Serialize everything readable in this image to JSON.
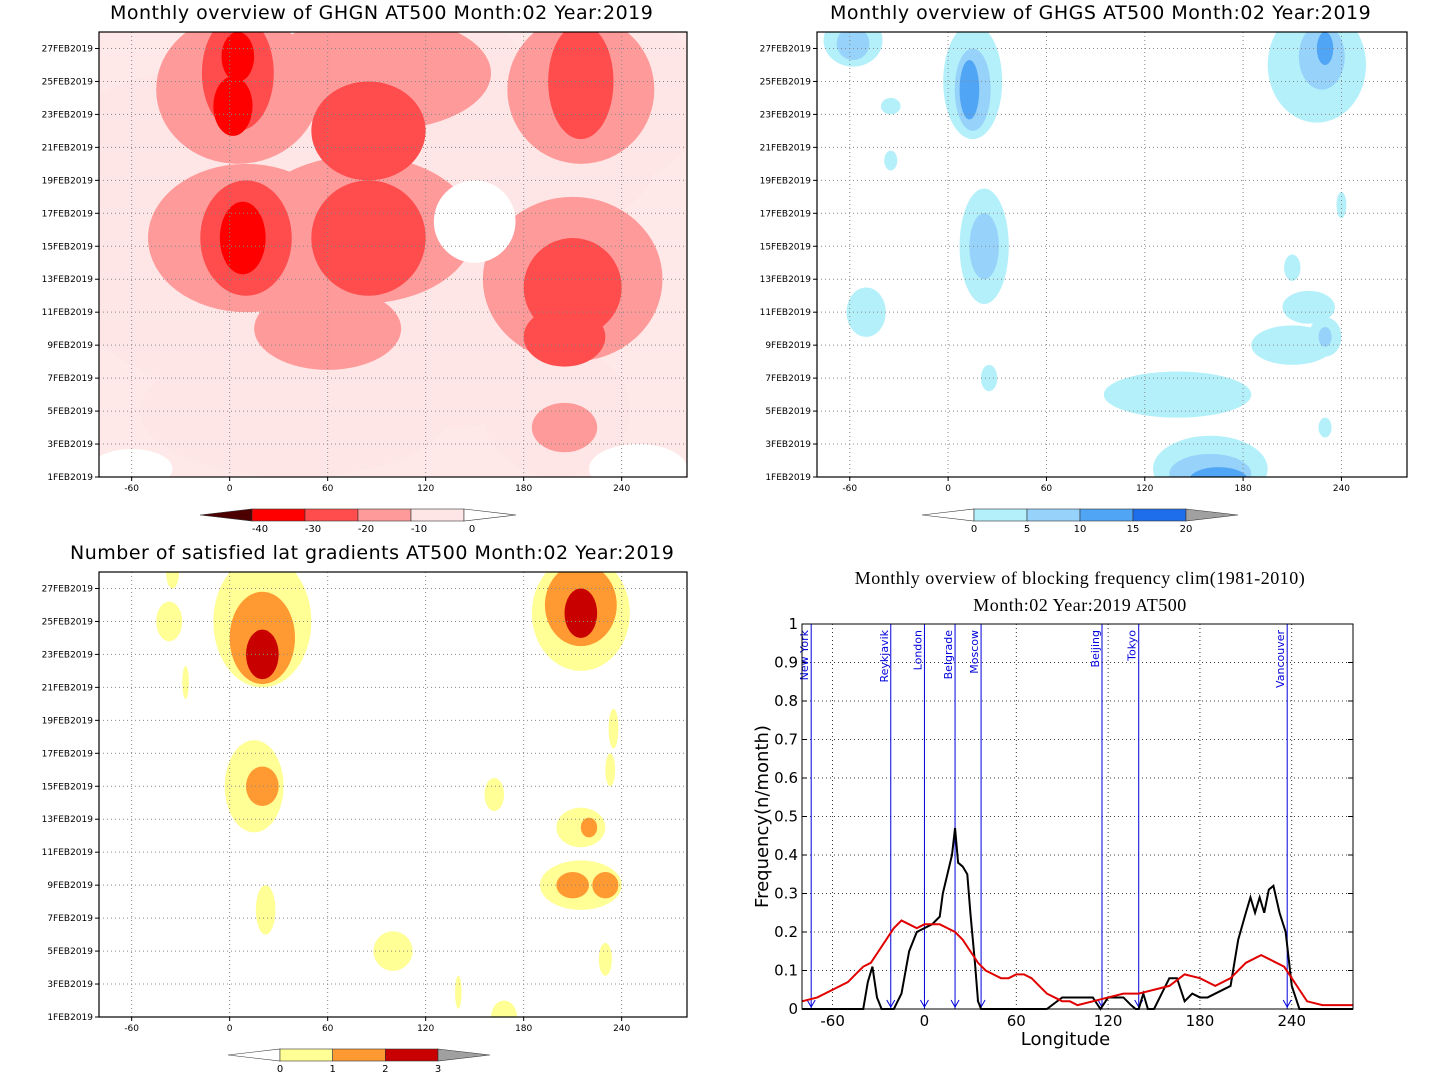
{
  "panels": {
    "ghgn": {
      "title": "Monthly overview of GHGN AT500 Month:02 Year:2019",
      "colorbar": {
        "labels": [
          "-40",
          "-30",
          "-20",
          "-10",
          "0"
        ],
        "colors": [
          "#4d0000",
          "#e80000",
          "#ff5050",
          "#ff9c9c",
          "#ffe8e8"
        ]
      }
    },
    "ghgs": {
      "title": "Monthly overview of GHGS AT500 Month:02 Year:2019",
      "colorbar": {
        "labels": [
          "0",
          "5",
          "10",
          "15",
          "20"
        ],
        "colors": [
          "#b4f0fa",
          "#96d2fa",
          "#50a5f5",
          "#1e6eeb",
          "#1450c8"
        ]
      }
    },
    "lat": {
      "title": "Number of satisfied lat gradients AT500 Month:02 Year:2019",
      "colorbar": {
        "labels": [
          "0",
          "1",
          "2",
          "3"
        ],
        "colors": [
          "#ffff96",
          "#ff9a32",
          "#c80000"
        ]
      }
    },
    "freq": {
      "title_line1": "Monthly overview of blocking frequency clim(1981-2010)",
      "title_line2": "Month:02 Year:2019  AT500"
    }
  },
  "map_axes": {
    "x_ticks": [
      "-60",
      "0",
      "60",
      "120",
      "180",
      "240"
    ],
    "y_ticks": [
      "1FEB2019",
      "3FEB2019",
      "5FEB2019",
      "7FEB2019",
      "9FEB2019",
      "11FEB2019",
      "13FEB2019",
      "15FEB2019",
      "17FEB2019",
      "19FEB2019",
      "21FEB2019",
      "23FEB2019",
      "25FEB2019",
      "27FEB2019"
    ]
  },
  "chart_data": [
    {
      "type": "heatmap",
      "title": "Monthly overview of GHGN AT500 Month:02 Year:2019",
      "xlim": [
        -80,
        280
      ],
      "x_ticks": [
        -60,
        0,
        60,
        120,
        180,
        240
      ],
      "y_ticks": [
        "1FEB2019",
        "3FEB2019",
        "5FEB2019",
        "7FEB2019",
        "9FEB2019",
        "11FEB2019",
        "13FEB2019",
        "15FEB2019",
        "17FEB2019",
        "19FEB2019",
        "21FEB2019",
        "23FEB2019",
        "25FEB2019",
        "27FEB2019"
      ],
      "levels": [
        -40,
        -30,
        -20,
        -10,
        0
      ],
      "blobs": [
        {
          "lon": 5,
          "day": 24.5,
          "rx": 50,
          "ry": 4.5,
          "v": -20
        },
        {
          "lon": 5,
          "day": 25.5,
          "rx": 22,
          "ry": 3.5,
          "v": -30
        },
        {
          "lon": 5,
          "day": 26.5,
          "rx": 10,
          "ry": 1.5,
          "v": -40
        },
        {
          "lon": 2,
          "day": 23.5,
          "rx": 12,
          "ry": 1.8,
          "v": -40
        },
        {
          "lon": 90,
          "day": 25.5,
          "rx": 70,
          "ry": 3.5,
          "v": -20
        },
        {
          "lon": 85,
          "day": 22,
          "rx": 35,
          "ry": 3,
          "v": -30
        },
        {
          "lon": 215,
          "day": 24.5,
          "rx": 45,
          "ry": 4.5,
          "v": -20
        },
        {
          "lon": 215,
          "day": 25,
          "rx": 20,
          "ry": 3.5,
          "v": -30
        },
        {
          "lon": 10,
          "day": 15.5,
          "rx": 60,
          "ry": 4.5,
          "v": -20
        },
        {
          "lon": 10,
          "day": 15.5,
          "rx": 28,
          "ry": 3.5,
          "v": -30
        },
        {
          "lon": 8,
          "day": 15.5,
          "rx": 14,
          "ry": 2.2,
          "v": -40
        },
        {
          "lon": 80,
          "day": 16,
          "rx": 70,
          "ry": 4.5,
          "v": -20
        },
        {
          "lon": 85,
          "day": 15.5,
          "rx": 35,
          "ry": 3.5,
          "v": -30
        },
        {
          "lon": 210,
          "day": 13,
          "rx": 55,
          "ry": 5,
          "v": -20
        },
        {
          "lon": 210,
          "day": 12.5,
          "rx": 30,
          "ry": 3,
          "v": -30
        },
        {
          "lon": 205,
          "day": 9.5,
          "rx": 25,
          "ry": 1.8,
          "v": -30
        },
        {
          "lon": 60,
          "day": 10,
          "rx": 45,
          "ry": 2.5,
          "v": -20
        },
        {
          "lon": 140,
          "day": 10,
          "rx": 60,
          "ry": 6,
          "v": -10
        },
        {
          "lon": 40,
          "day": 5,
          "rx": 95,
          "ry": 4,
          "v": -10
        },
        {
          "lon": 200,
          "day": 5,
          "rx": 45,
          "ry": 4,
          "v": -10
        },
        {
          "lon": 205,
          "day": 4,
          "rx": 20,
          "ry": 1.5,
          "v": -20
        },
        {
          "lon": 5,
          "day": 20,
          "rx": 120,
          "ry": 6,
          "v": -10
        },
        {
          "lon": 150,
          "day": 20,
          "rx": 110,
          "ry": 5,
          "v": -10
        },
        {
          "lon": -55,
          "day": 14,
          "rx": 45,
          "ry": 3,
          "v": -10
        },
        {
          "lon": 20,
          "day": 13,
          "rx": 120,
          "ry": 7,
          "v": -10
        },
        {
          "lon": 240,
          "day": 24,
          "rx": 50,
          "ry": 5,
          "v": -10
        },
        {
          "lon": 130,
          "day": 26,
          "rx": 50,
          "ry": 3,
          "v": -10
        }
      ],
      "background_level": 0,
      "clear_patches": [
        {
          "lon": 150,
          "day": 16.5,
          "rx": 25,
          "ry": 2.5
        },
        {
          "lon": -60,
          "day": 1.5,
          "rx": 25,
          "ry": 1.2
        },
        {
          "lon": 250,
          "day": 1.5,
          "rx": 30,
          "ry": 1.5
        }
      ]
    },
    {
      "type": "heatmap",
      "title": "Monthly overview of GHGS AT500 Month:02 Year:2019",
      "xlim": [
        -80,
        280
      ],
      "x_ticks": [
        -60,
        0,
        60,
        120,
        180,
        240
      ],
      "levels": [
        0,
        5,
        10,
        15,
        20
      ],
      "blobs": [
        {
          "lon": 15,
          "day": 25,
          "rx": 18,
          "ry": 3.5,
          "v": 5
        },
        {
          "lon": 15,
          "day": 24.5,
          "rx": 11,
          "ry": 2.5,
          "v": 10
        },
        {
          "lon": 13,
          "day": 24.5,
          "rx": 6,
          "ry": 1.8,
          "v": 15
        },
        {
          "lon": -58,
          "day": 27.5,
          "rx": 18,
          "ry": 1.6,
          "v": 5
        },
        {
          "lon": -58,
          "day": 27.3,
          "rx": 10,
          "ry": 1,
          "v": 10
        },
        {
          "lon": 225,
          "day": 26,
          "rx": 30,
          "ry": 3.5,
          "v": 5
        },
        {
          "lon": 228,
          "day": 26.5,
          "rx": 14,
          "ry": 2,
          "v": 10
        },
        {
          "lon": 230,
          "day": 27,
          "rx": 5,
          "ry": 1,
          "v": 15
        },
        {
          "lon": 22,
          "day": 15,
          "rx": 15,
          "ry": 3.5,
          "v": 5
        },
        {
          "lon": 22,
          "day": 15,
          "rx": 9,
          "ry": 2,
          "v": 10
        },
        {
          "lon": -50,
          "day": 11,
          "rx": 12,
          "ry": 1.5,
          "v": 5
        },
        {
          "lon": 160,
          "day": 1.5,
          "rx": 35,
          "ry": 2,
          "v": 5
        },
        {
          "lon": 160,
          "day": 1.2,
          "rx": 25,
          "ry": 1.2,
          "v": 10
        },
        {
          "lon": 165,
          "day": 0.8,
          "rx": 18,
          "ry": 0.8,
          "v": 15
        },
        {
          "lon": 140,
          "day": 6,
          "rx": 45,
          "ry": 1.4,
          "v": 5
        },
        {
          "lon": 210,
          "day": 9,
          "rx": 25,
          "ry": 1.2,
          "v": 5
        },
        {
          "lon": 230,
          "day": 9.5,
          "rx": 10,
          "ry": 1.2,
          "v": 5
        },
        {
          "lon": 230,
          "day": 9.5,
          "rx": 4,
          "ry": 0.6,
          "v": 10
        },
        {
          "lon": 220,
          "day": 11.3,
          "rx": 16,
          "ry": 1,
          "v": 5
        },
        {
          "lon": 210,
          "day": 13.7,
          "rx": 5,
          "ry": 0.8,
          "v": 5
        },
        {
          "lon": 25,
          "day": 7,
          "rx": 5,
          "ry": 0.8,
          "v": 5
        },
        {
          "lon": -35,
          "day": 23.5,
          "rx": 6,
          "ry": 0.5,
          "v": 5
        },
        {
          "lon": -35,
          "day": 20.2,
          "rx": 4,
          "ry": 0.6,
          "v": 5
        },
        {
          "lon": 230,
          "day": 4,
          "rx": 4,
          "ry": 0.6,
          "v": 5
        },
        {
          "lon": 240,
          "day": 17.5,
          "rx": 3,
          "ry": 0.8,
          "v": 5
        }
      ]
    },
    {
      "type": "heatmap",
      "title": "Number of satisfied lat gradients AT500 Month:02 Year:2019",
      "xlim": [
        -80,
        280
      ],
      "x_ticks": [
        -60,
        0,
        60,
        120,
        180,
        240
      ],
      "levels": [
        0,
        1,
        2,
        3
      ],
      "blobs": [
        {
          "lon": 20,
          "day": 25,
          "rx": 30,
          "ry": 4,
          "v": 0
        },
        {
          "lon": 20,
          "day": 24,
          "rx": 20,
          "ry": 2.8,
          "v": 1
        },
        {
          "lon": 20,
          "day": 23,
          "rx": 10,
          "ry": 1.5,
          "v": 2
        },
        {
          "lon": 15,
          "day": 15,
          "rx": 18,
          "ry": 2.8,
          "v": 0
        },
        {
          "lon": 20,
          "day": 15,
          "rx": 10,
          "ry": 1.2,
          "v": 1
        },
        {
          "lon": 215,
          "day": 25.5,
          "rx": 30,
          "ry": 3.5,
          "v": 0
        },
        {
          "lon": 215,
          "day": 26,
          "rx": 22,
          "ry": 2.5,
          "v": 1
        },
        {
          "lon": 215,
          "day": 25.5,
          "rx": 10,
          "ry": 1.5,
          "v": 2
        },
        {
          "lon": 215,
          "day": 9,
          "rx": 25,
          "ry": 1.5,
          "v": 0
        },
        {
          "lon": 210,
          "day": 9,
          "rx": 10,
          "ry": 0.8,
          "v": 1
        },
        {
          "lon": 230,
          "day": 9,
          "rx": 8,
          "ry": 0.8,
          "v": 1
        },
        {
          "lon": 215,
          "day": 12.5,
          "rx": 15,
          "ry": 1.2,
          "v": 0
        },
        {
          "lon": 220,
          "day": 12.5,
          "rx": 5,
          "ry": 0.6,
          "v": 1
        },
        {
          "lon": -37,
          "day": 25,
          "rx": 8,
          "ry": 1.2,
          "v": 0
        },
        {
          "lon": -35,
          "day": 28,
          "rx": 4,
          "ry": 1,
          "v": 0
        },
        {
          "lon": -27,
          "day": 21.3,
          "rx": 2,
          "ry": 1,
          "v": 0
        },
        {
          "lon": 100,
          "day": 5,
          "rx": 12,
          "ry": 1.2,
          "v": 0
        },
        {
          "lon": 162,
          "day": 14.5,
          "rx": 6,
          "ry": 1,
          "v": 0
        },
        {
          "lon": 22,
          "day": 7.5,
          "rx": 6,
          "ry": 1.5,
          "v": 0
        },
        {
          "lon": 230,
          "day": 4.5,
          "rx": 4,
          "ry": 1,
          "v": 0
        },
        {
          "lon": 233,
          "day": 16,
          "rx": 3,
          "ry": 1,
          "v": 0
        },
        {
          "lon": 235,
          "day": 18.5,
          "rx": 3,
          "ry": 1.2,
          "v": 0
        },
        {
          "lon": 140,
          "day": 2.5,
          "rx": 2,
          "ry": 1,
          "v": 0
        },
        {
          "lon": 168,
          "day": 1,
          "rx": 8,
          "ry": 1,
          "v": 0
        }
      ]
    },
    {
      "type": "line",
      "title": "Monthly overview of blocking frequency clim(1981-2010)",
      "subtitle": "Month:02 Year:2019  AT500",
      "xlabel": "Longitude",
      "ylabel": "Frequency(n/month)",
      "xlim": [
        -80,
        280
      ],
      "ylim": [
        0,
        1
      ],
      "x_ticks": [
        -60,
        0,
        60,
        120,
        180,
        240
      ],
      "y_ticks": [
        0,
        0.1,
        0.2,
        0.3,
        0.4,
        0.5,
        0.6,
        0.7,
        0.8,
        0.9,
        1
      ],
      "cities": [
        {
          "name": "New York",
          "lon": -74
        },
        {
          "name": "Reykjavik",
          "lon": -22
        },
        {
          "name": "London",
          "lon": 0
        },
        {
          "name": "Belgrade",
          "lon": 20
        },
        {
          "name": "Moscow",
          "lon": 37
        },
        {
          "name": "Beijing",
          "lon": 116
        },
        {
          "name": "Tokyo",
          "lon": 140
        },
        {
          "name": "Vancouver",
          "lon": 237
        }
      ],
      "series": [
        {
          "color": "#000000",
          "x": [
            -80,
            -40,
            -37,
            -34,
            -31,
            -28,
            -25,
            -20,
            -15,
            -10,
            -5,
            0,
            5,
            10,
            12,
            15,
            18,
            20,
            22,
            25,
            28,
            30,
            33,
            35,
            37,
            40,
            50,
            80,
            90,
            110,
            115,
            120,
            125,
            130,
            135,
            138,
            140,
            143,
            146,
            150,
            160,
            165,
            170,
            175,
            180,
            185,
            200,
            205,
            210,
            213,
            216,
            219,
            222,
            225,
            228,
            232,
            236,
            240,
            245,
            250,
            280
          ],
          "y": [
            0,
            0,
            0.07,
            0.11,
            0.03,
            0,
            0,
            0,
            0.04,
            0.15,
            0.2,
            0.21,
            0.22,
            0.24,
            0.3,
            0.35,
            0.4,
            0.47,
            0.38,
            0.37,
            0.35,
            0.25,
            0.12,
            0.02,
            0,
            0,
            0,
            0,
            0.03,
            0.03,
            0,
            0.03,
            0.03,
            0.03,
            0.01,
            0,
            0,
            0.04,
            0,
            0,
            0.08,
            0.08,
            0.02,
            0.04,
            0.03,
            0.03,
            0.06,
            0.18,
            0.25,
            0.29,
            0.25,
            0.29,
            0.25,
            0.31,
            0.32,
            0.25,
            0.2,
            0.06,
            0,
            0,
            0
          ]
        },
        {
          "color": "#e00000",
          "x": [
            -80,
            -70,
            -60,
            -50,
            -45,
            -40,
            -35,
            -30,
            -25,
            -20,
            -15,
            -10,
            -5,
            0,
            5,
            10,
            15,
            20,
            25,
            30,
            35,
            40,
            45,
            50,
            55,
            60,
            65,
            70,
            75,
            80,
            85,
            90,
            95,
            100,
            110,
            120,
            130,
            140,
            150,
            160,
            170,
            180,
            190,
            200,
            205,
            210,
            215,
            220,
            225,
            230,
            235,
            240,
            245,
            250,
            260,
            270,
            280
          ],
          "y": [
            0.02,
            0.03,
            0.05,
            0.07,
            0.09,
            0.11,
            0.12,
            0.15,
            0.18,
            0.21,
            0.23,
            0.22,
            0.21,
            0.22,
            0.22,
            0.22,
            0.21,
            0.2,
            0.18,
            0.15,
            0.12,
            0.1,
            0.09,
            0.08,
            0.08,
            0.09,
            0.09,
            0.08,
            0.06,
            0.04,
            0.03,
            0.02,
            0.02,
            0.01,
            0.02,
            0.03,
            0.04,
            0.04,
            0.05,
            0.06,
            0.09,
            0.08,
            0.06,
            0.08,
            0.1,
            0.12,
            0.13,
            0.14,
            0.13,
            0.12,
            0.11,
            0.08,
            0.05,
            0.02,
            0.01,
            0.01,
            0.01
          ]
        }
      ]
    }
  ]
}
